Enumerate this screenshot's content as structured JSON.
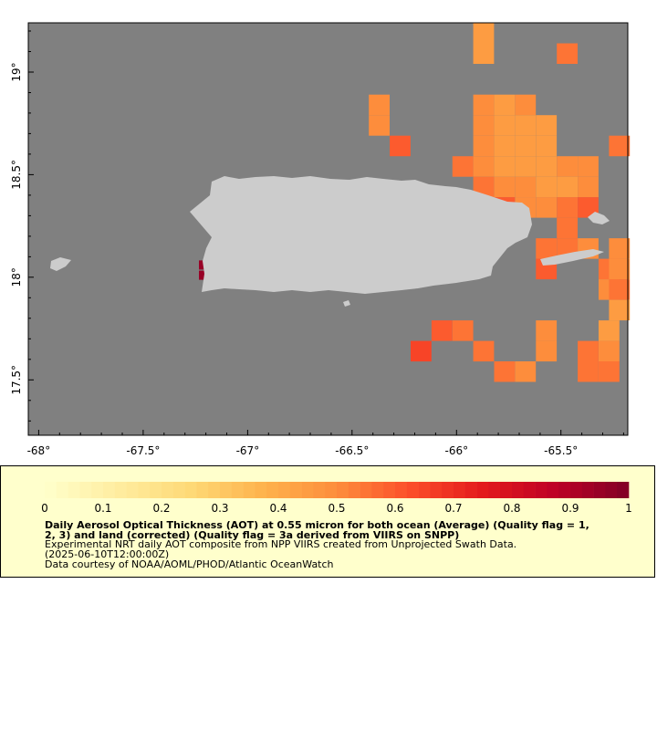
{
  "map": {
    "lat_labels": [
      {
        "value": 19,
        "label": "19°"
      },
      {
        "value": 18.5,
        "label": "18.5°"
      },
      {
        "value": 18,
        "label": "18°"
      },
      {
        "value": 17.5,
        "label": "17.5°"
      }
    ],
    "lon_labels": [
      {
        "value": -68,
        "label": "-68°"
      },
      {
        "value": -67.5,
        "label": "-67.5°"
      },
      {
        "value": -67,
        "label": "-67°"
      },
      {
        "value": -66.5,
        "label": "-66.5°"
      },
      {
        "value": -66,
        "label": "-66°"
      },
      {
        "value": -65.5,
        "label": "-65.5°"
      }
    ],
    "lon_range": [
      -68.05,
      -65.18
    ],
    "lat_range": [
      17.23,
      19.24
    ],
    "background_color": "#808080",
    "land_color": "#cccccc",
    "aot_cells": [
      {
        "lon": -65.87,
        "lat": 19.19,
        "aot": 0.45
      },
      {
        "lon": -65.87,
        "lat": 19.09,
        "aot": 0.45
      },
      {
        "lon": -65.47,
        "lat": 19.09,
        "aot": 0.55
      },
      {
        "lon": -66.37,
        "lat": 18.84,
        "aot": 0.5
      },
      {
        "lon": -66.37,
        "lat": 18.74,
        "aot": 0.5
      },
      {
        "lon": -65.87,
        "lat": 18.84,
        "aot": 0.5
      },
      {
        "lon": -65.77,
        "lat": 18.84,
        "aot": 0.45
      },
      {
        "lon": -65.67,
        "lat": 18.84,
        "aot": 0.5
      },
      {
        "lon": -65.87,
        "lat": 18.74,
        "aot": 0.5
      },
      {
        "lon": -65.77,
        "lat": 18.74,
        "aot": 0.45
      },
      {
        "lon": -65.67,
        "lat": 18.74,
        "aot": 0.45
      },
      {
        "lon": -65.57,
        "lat": 18.74,
        "aot": 0.45
      },
      {
        "lon": -66.27,
        "lat": 18.64,
        "aot": 0.6
      },
      {
        "lon": -65.87,
        "lat": 18.64,
        "aot": 0.5
      },
      {
        "lon": -65.77,
        "lat": 18.64,
        "aot": 0.45
      },
      {
        "lon": -65.67,
        "lat": 18.64,
        "aot": 0.45
      },
      {
        "lon": -65.57,
        "lat": 18.64,
        "aot": 0.45
      },
      {
        "lon": -65.22,
        "lat": 18.64,
        "aot": 0.55
      },
      {
        "lon": -65.97,
        "lat": 18.54,
        "aot": 0.55
      },
      {
        "lon": -65.87,
        "lat": 18.54,
        "aot": 0.5
      },
      {
        "lon": -65.77,
        "lat": 18.54,
        "aot": 0.45
      },
      {
        "lon": -65.67,
        "lat": 18.54,
        "aot": 0.45
      },
      {
        "lon": -65.57,
        "lat": 18.54,
        "aot": 0.45
      },
      {
        "lon": -65.47,
        "lat": 18.54,
        "aot": 0.5
      },
      {
        "lon": -65.37,
        "lat": 18.54,
        "aot": 0.5
      },
      {
        "lon": -65.87,
        "lat": 18.44,
        "aot": 0.55
      },
      {
        "lon": -65.77,
        "lat": 18.44,
        "aot": 0.5
      },
      {
        "lon": -65.67,
        "lat": 18.44,
        "aot": 0.5
      },
      {
        "lon": -65.57,
        "lat": 18.44,
        "aot": 0.45
      },
      {
        "lon": -65.47,
        "lat": 18.44,
        "aot": 0.45
      },
      {
        "lon": -65.37,
        "lat": 18.44,
        "aot": 0.5
      },
      {
        "lon": -65.87,
        "lat": 18.34,
        "aot": 0.65
      },
      {
        "lon": -65.77,
        "lat": 18.34,
        "aot": 0.6
      },
      {
        "lon": -65.67,
        "lat": 18.34,
        "aot": 0.5
      },
      {
        "lon": -65.57,
        "lat": 18.34,
        "aot": 0.5
      },
      {
        "lon": -65.47,
        "lat": 18.34,
        "aot": 0.55
      },
      {
        "lon": -65.37,
        "lat": 18.34,
        "aot": 0.6
      },
      {
        "lon": -65.47,
        "lat": 18.24,
        "aot": 0.55
      },
      {
        "lon": -65.57,
        "lat": 18.14,
        "aot": 0.55
      },
      {
        "lon": -65.47,
        "lat": 18.14,
        "aot": 0.55
      },
      {
        "lon": -65.37,
        "lat": 18.14,
        "aot": 0.5
      },
      {
        "lon": -65.22,
        "lat": 18.14,
        "aot": 0.5
      },
      {
        "lon": -65.57,
        "lat": 18.04,
        "aot": 0.6
      },
      {
        "lon": -65.27,
        "lat": 18.04,
        "aot": 0.55
      },
      {
        "lon": -65.22,
        "lat": 18.04,
        "aot": 0.5
      },
      {
        "lon": -65.27,
        "lat": 17.94,
        "aot": 0.5
      },
      {
        "lon": -65.22,
        "lat": 17.94,
        "aot": 0.55
      },
      {
        "lon": -65.22,
        "lat": 17.84,
        "aot": 0.45
      },
      {
        "lon": -66.07,
        "lat": 17.74,
        "aot": 0.6
      },
      {
        "lon": -65.97,
        "lat": 17.74,
        "aot": 0.55
      },
      {
        "lon": -65.57,
        "lat": 17.74,
        "aot": 0.5
      },
      {
        "lon": -65.27,
        "lat": 17.74,
        "aot": 0.45
      },
      {
        "lon": -66.17,
        "lat": 17.64,
        "aot": 0.65
      },
      {
        "lon": -65.87,
        "lat": 17.64,
        "aot": 0.55
      },
      {
        "lon": -65.57,
        "lat": 17.64,
        "aot": 0.5
      },
      {
        "lon": -65.37,
        "lat": 17.64,
        "aot": 0.55
      },
      {
        "lon": -65.27,
        "lat": 17.64,
        "aot": 0.5
      },
      {
        "lon": -65.77,
        "lat": 17.54,
        "aot": 0.55
      },
      {
        "lon": -65.67,
        "lat": 17.54,
        "aot": 0.5
      },
      {
        "lon": -65.37,
        "lat": 17.54,
        "aot": 0.55
      },
      {
        "lon": -65.27,
        "lat": 17.54,
        "aot": 0.55
      },
      {
        "lon": -67.22,
        "lat": 18.06,
        "aot": 0.95
      },
      {
        "lon": -67.22,
        "lat": 18.01,
        "aot": 0.95
      }
    ]
  },
  "legend": {
    "tick_labels": [
      "0",
      "0.1",
      "0.2",
      "0.3",
      "0.4",
      "0.5",
      "0.6",
      "0.7",
      "0.8",
      "0.9",
      "1"
    ],
    "title_line1": "Daily Aerosol Optical Thickness (AOT) at 0.55 micron for both ocean (Average) (Quality flag = 1,",
    "title_line2": "2, 3) and land (corrected) (Quality flag = 3a derived from VIIRS on SNPP)",
    "description": "Experimental NRT daily AOT composite from NPP VIIRS created from Unprojected Swath Data.",
    "date": "(2025-06-10T12:00:00Z)",
    "credit": "Data courtesy of NOAA/AOML/PHOD/Atlantic OceanWatch",
    "colormap": [
      "#ffffcc",
      "#ffeda0",
      "#fed976",
      "#feb24c",
      "#fd8d3c",
      "#fc4e2a",
      "#e31a1c",
      "#bd0026",
      "#800026"
    ]
  }
}
